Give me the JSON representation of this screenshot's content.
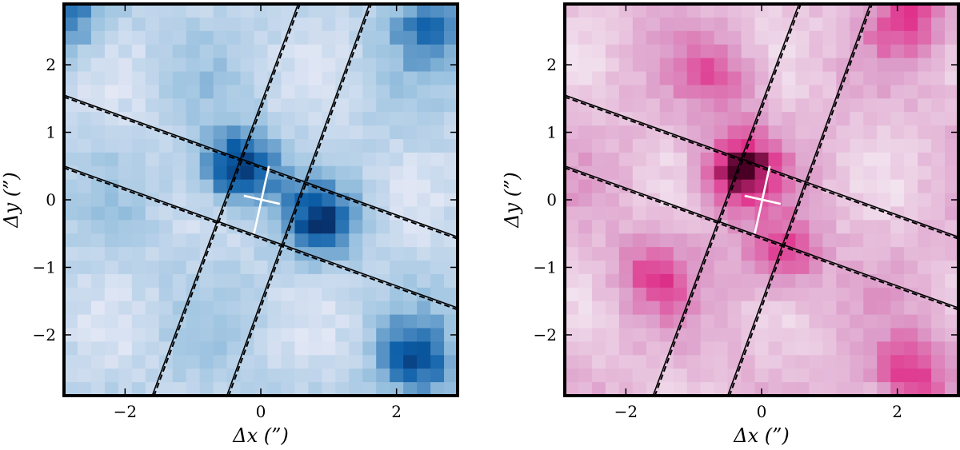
{
  "chart_data": [
    {
      "type": "heatmap",
      "colormap": "Blues",
      "colors": {
        "low": "#f4f0fa",
        "mid": "#9cc3e0",
        "high": "#0b5ea8",
        "peak": "#08306b",
        "overlay_mark": "#ffffff",
        "lines": "#000000"
      },
      "xlabel": "Δx (”)",
      "ylabel": "Δy (”)",
      "xlim": [
        -2.9,
        2.9
      ],
      "ylim": [
        -2.9,
        2.9
      ],
      "x_ticks": [
        -2,
        0,
        2
      ],
      "y_ticks": [
        -2,
        -1,
        0,
        1,
        2
      ],
      "x_tick_labels": [
        "−2",
        "0",
        "2"
      ],
      "y_tick_labels": [
        "−2",
        "−1",
        "0",
        "1",
        "2"
      ],
      "grid": false,
      "bright_spots": [
        {
          "x": -0.35,
          "y": 0.45,
          "strength": 1.0
        },
        {
          "x": 0.9,
          "y": -0.35,
          "strength": 0.75
        },
        {
          "x": 2.3,
          "y": -2.4,
          "strength": 0.7
        },
        {
          "x": 2.5,
          "y": 2.6,
          "strength": 0.6
        },
        {
          "x": -2.8,
          "y": 2.7,
          "strength": 0.55
        }
      ],
      "slit_lines": [
        {
          "from": [
            -2.9,
            1.55
          ],
          "to": [
            2.9,
            -0.55
          ]
        },
        {
          "from": [
            -2.9,
            0.5
          ],
          "to": [
            2.9,
            -1.6
          ]
        },
        {
          "from": [
            -1.6,
            -2.9
          ],
          "to": [
            0.55,
            2.9
          ]
        },
        {
          "from": [
            -0.5,
            -2.9
          ],
          "to": [
            1.6,
            2.9
          ]
        }
      ],
      "cross": {
        "x": 0.0,
        "y": 0.0
      }
    },
    {
      "type": "heatmap",
      "colormap": "RdPu",
      "colors": {
        "low": "#f6f0f6",
        "mid": "#dc9cc9",
        "high": "#e0308a",
        "peak": "#4a0024",
        "overlay_mark": "#ffffff",
        "lines": "#000000"
      },
      "xlabel": "Δx (”)",
      "ylabel": "Δy (”)",
      "xlim": [
        -2.9,
        2.9
      ],
      "ylim": [
        -2.9,
        2.9
      ],
      "x_ticks": [
        -2,
        0,
        2
      ],
      "y_ticks": [
        -2,
        -1,
        0,
        1,
        2
      ],
      "x_tick_labels": [
        "−2",
        "0",
        "2"
      ],
      "y_tick_labels": [
        "−2",
        "−1",
        "0",
        "1",
        "2"
      ],
      "grid": false,
      "bright_spots": [
        {
          "x": -0.35,
          "y": 0.45,
          "strength": 1.0
        },
        {
          "x": 0.3,
          "y": -0.85,
          "strength": 0.7
        },
        {
          "x": 2.2,
          "y": -2.6,
          "strength": 0.7
        },
        {
          "x": 2.2,
          "y": 2.7,
          "strength": 0.6
        },
        {
          "x": -1.6,
          "y": -1.1,
          "strength": 0.55
        },
        {
          "x": -0.6,
          "y": 1.8,
          "strength": 0.5
        }
      ],
      "slit_lines": [
        {
          "from": [
            -2.9,
            1.55
          ],
          "to": [
            2.9,
            -0.55
          ]
        },
        {
          "from": [
            -2.9,
            0.5
          ],
          "to": [
            2.9,
            -1.6
          ]
        },
        {
          "from": [
            -1.6,
            -2.9
          ],
          "to": [
            0.55,
            2.9
          ]
        },
        {
          "from": [
            -0.5,
            -2.9
          ],
          "to": [
            1.6,
            2.9
          ]
        }
      ],
      "cross": {
        "x": 0.0,
        "y": 0.0
      }
    }
  ]
}
